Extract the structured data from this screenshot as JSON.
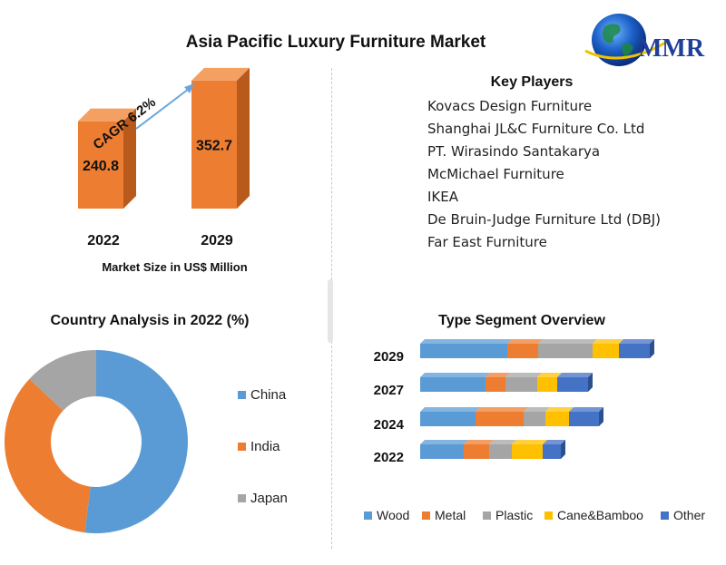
{
  "title": "Asia Pacific Luxury Furniture Market",
  "logo": {
    "text": "MMR",
    "icon": "globe-icon"
  },
  "market_size": {
    "caption": "Market Size in US$ Million",
    "cagr_label": "CAGR 6.2%",
    "color_face": "#ed7d31",
    "color_side": "#b85a1c"
  },
  "key_players": {
    "title": "Key Players",
    "items": [
      "Kovacs Design Furniture",
      "Shanghai JL&C Furniture Co. Ltd",
      "PT. Wirasindo Santakarya",
      "McMichael Furniture",
      "IKEA",
      "De Bruin-Judge Furniture Ltd (DBJ)",
      "Far East Furniture"
    ]
  },
  "country_analysis": {
    "title": "Country Analysis in 2022 (%)"
  },
  "type_segment": {
    "title": "Type Segment Overview"
  },
  "chart_data": [
    {
      "type": "bar",
      "categories": [
        "2022",
        "2029"
      ],
      "values": [
        240.8,
        352.7
      ],
      "xlabel": "Market Size in US$ Million",
      "annotation": "CAGR 6.2%",
      "data_labels": [
        "240.8",
        "352.7"
      ]
    },
    {
      "type": "pie",
      "title": "Country Analysis in 2022 (%)",
      "labels": [
        "China",
        "India",
        "Japan"
      ],
      "values": [
        52,
        35,
        13
      ],
      "colors": [
        "#5b9bd5",
        "#ed7d31",
        "#a5a5a5"
      ],
      "legend": "right",
      "donut": true
    },
    {
      "type": "bar",
      "orientation": "horizontal",
      "stacked": true,
      "title": "Type Segment Overview",
      "categories": [
        "2029",
        "2027",
        "2024",
        "2022"
      ],
      "series": [
        {
          "name": "Wood",
          "color": "#5b9bd5",
          "values": [
            96,
            72,
            61,
            48
          ]
        },
        {
          "name": "Metal",
          "color": "#ed7d31",
          "values": [
            34,
            22,
            53,
            28
          ]
        },
        {
          "name": "Plastic",
          "color": "#a5a5a5",
          "values": [
            60,
            35,
            24,
            25
          ]
        },
        {
          "name": "Cane&Bamboo",
          "color": "#ffc000",
          "values": [
            29,
            22,
            26,
            34
          ]
        },
        {
          "name": "Other",
          "color": "#4472c4",
          "values": [
            34,
            34,
            33,
            20
          ]
        }
      ],
      "legend": "bottom"
    }
  ]
}
